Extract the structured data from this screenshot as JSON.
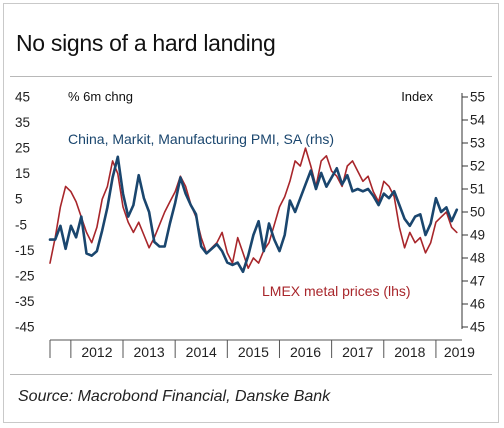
{
  "header": {
    "title": "No signs of a hard landing"
  },
  "footer": {
    "source": "Source: Macrobond Financial, Danske Bank"
  },
  "chart_data": {
    "type": "line",
    "ylabel_left": "% 6m chng",
    "ylabel_right": "Index",
    "y_left": {
      "min": -45,
      "max": 45,
      "ticks": [
        45,
        35,
        25,
        15,
        5,
        -5,
        -15,
        -25,
        -35,
        -45
      ]
    },
    "y_right": {
      "min": 45,
      "max": 55,
      "ticks": [
        55,
        54,
        53,
        52,
        51,
        50,
        49,
        48,
        47,
        46,
        45
      ]
    },
    "x_range": [
      2011.6,
      2019.5
    ],
    "x_ticks": [
      "2012",
      "2013",
      "2014",
      "2015",
      "2016",
      "2017",
      "2018",
      "2019"
    ],
    "colors": {
      "pmi": "#1a466e",
      "lmex": "#a8262b"
    },
    "series": [
      {
        "name": "China, Markit, Manufacturing PMI, SA (rhs)",
        "axis": "right",
        "x": [
          2011.6,
          2011.7,
          2011.8,
          2011.9,
          2012.0,
          2012.1,
          2012.2,
          2012.3,
          2012.4,
          2012.5,
          2012.6,
          2012.7,
          2012.8,
          2012.9,
          2013.0,
          2013.1,
          2013.2,
          2013.3,
          2013.4,
          2013.5,
          2013.6,
          2013.7,
          2013.8,
          2013.9,
          2014.0,
          2014.1,
          2014.2,
          2014.3,
          2014.4,
          2014.5,
          2014.6,
          2014.7,
          2014.8,
          2014.9,
          2015.0,
          2015.1,
          2015.2,
          2015.3,
          2015.4,
          2015.5,
          2015.6,
          2015.7,
          2015.8,
          2015.9,
          2016.0,
          2016.1,
          2016.2,
          2016.3,
          2016.4,
          2016.5,
          2016.6,
          2016.7,
          2016.8,
          2016.9,
          2017.0,
          2017.1,
          2017.2,
          2017.3,
          2017.4,
          2017.5,
          2017.6,
          2017.7,
          2017.8,
          2017.9,
          2018.0,
          2018.1,
          2018.2,
          2018.3,
          2018.4,
          2018.5,
          2018.6,
          2018.7,
          2018.8,
          2018.9,
          2019.0,
          2019.1,
          2019.2,
          2019.3,
          2019.4
        ],
        "values": [
          48.8,
          48.8,
          49.4,
          48.4,
          49.4,
          48.9,
          49.8,
          48.2,
          48.1,
          48.3,
          49.2,
          50.2,
          51.5,
          52.4,
          50.8,
          49.8,
          50.3,
          51.6,
          50.6,
          50.0,
          48.7,
          48.5,
          48.5,
          49.5,
          50.4,
          51.5,
          50.8,
          50.3,
          49.9,
          48.5,
          48.2,
          48.4,
          48.6,
          48.3,
          47.8,
          47.7,
          47.8,
          47.4,
          48.1,
          49.0,
          49.6,
          48.3,
          49.5,
          48.8,
          48.3,
          49.0,
          50.5,
          50.0,
          50.6,
          51.2,
          51.8,
          51.0,
          51.7,
          51.1,
          51.5,
          51.9,
          51.2,
          51.6,
          50.9,
          51.0,
          50.9,
          51.0,
          50.7,
          50.3,
          50.8,
          50.6,
          50.9,
          50.3,
          49.7,
          49.4,
          49.8,
          49.9,
          49.0,
          49.5,
          50.6,
          50.0,
          50.2,
          49.6,
          50.1
        ]
      },
      {
        "name": "LMEX metal prices (lhs)",
        "axis": "left",
        "x": [
          2011.6,
          2011.7,
          2011.8,
          2011.9,
          2012.0,
          2012.1,
          2012.2,
          2012.3,
          2012.4,
          2012.5,
          2012.6,
          2012.7,
          2012.8,
          2012.9,
          2013.0,
          2013.1,
          2013.2,
          2013.3,
          2013.4,
          2013.5,
          2013.6,
          2013.7,
          2013.8,
          2013.9,
          2014.0,
          2014.1,
          2014.2,
          2014.3,
          2014.4,
          2014.5,
          2014.6,
          2014.7,
          2014.8,
          2014.9,
          2015.0,
          2015.1,
          2015.2,
          2015.3,
          2015.4,
          2015.5,
          2015.6,
          2015.7,
          2015.8,
          2015.9,
          2016.0,
          2016.1,
          2016.2,
          2016.3,
          2016.4,
          2016.5,
          2016.6,
          2016.7,
          2016.8,
          2016.9,
          2017.0,
          2017.1,
          2017.2,
          2017.3,
          2017.4,
          2017.5,
          2017.6,
          2017.7,
          2017.8,
          2017.9,
          2018.0,
          2018.1,
          2018.2,
          2018.3,
          2018.4,
          2018.5,
          2018.6,
          2018.7,
          2018.8,
          2018.9,
          2019.0,
          2019.1,
          2019.2,
          2019.3,
          2019.4
        ],
        "values": [
          -20,
          -10,
          2,
          10,
          8,
          4,
          -2,
          -8,
          -12,
          -6,
          5,
          10,
          20,
          15,
          2,
          -4,
          -8,
          -4,
          -9,
          -14,
          -10,
          -5,
          0,
          4,
          8,
          14,
          10,
          3,
          -2,
          -10,
          -16,
          -14,
          -12,
          -8,
          -16,
          -20,
          -10,
          -16,
          -22,
          -18,
          -20,
          -15,
          -12,
          -5,
          2,
          6,
          12,
          20,
          18,
          25,
          18,
          10,
          20,
          22,
          16,
          14,
          10,
          18,
          20,
          16,
          12,
          14,
          8,
          4,
          12,
          10,
          6,
          -6,
          -14,
          -8,
          -12,
          -10,
          -16,
          -12,
          -4,
          -2,
          0,
          -6,
          -8
        ]
      }
    ]
  }
}
